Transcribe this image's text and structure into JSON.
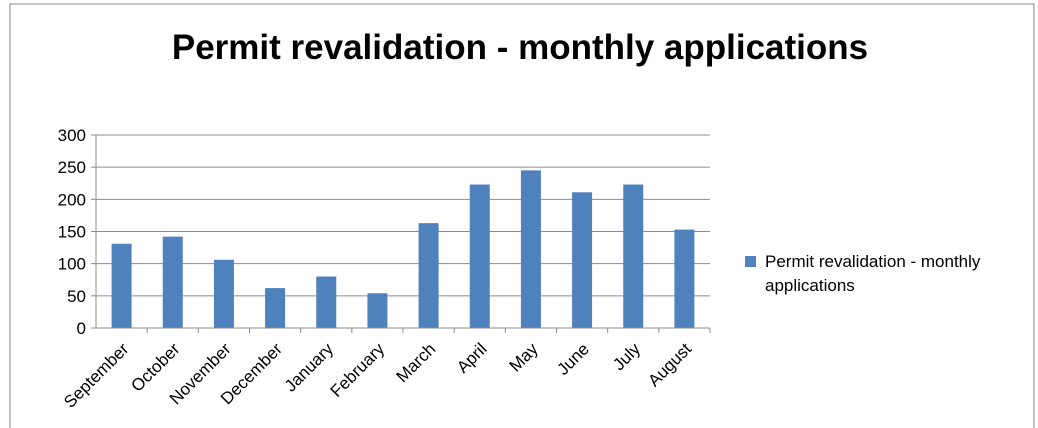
{
  "chart_data": {
    "type": "bar",
    "title": "Permit revalidation - monthly applications",
    "categories": [
      "September",
      "October",
      "November",
      "December",
      "January",
      "February",
      "March",
      "April",
      "May",
      "June",
      "July",
      "August"
    ],
    "series": [
      {
        "name": "Permit revalidation - monthly applications",
        "color": "#4f81bd",
        "values": [
          131,
          142,
          106,
          62,
          80,
          54,
          163,
          223,
          245,
          211,
          223,
          153
        ]
      }
    ],
    "ylim": [
      0,
      300
    ],
    "yticks": [
      0,
      50,
      100,
      150,
      200,
      250,
      300
    ],
    "grid": true,
    "legend": "right"
  }
}
